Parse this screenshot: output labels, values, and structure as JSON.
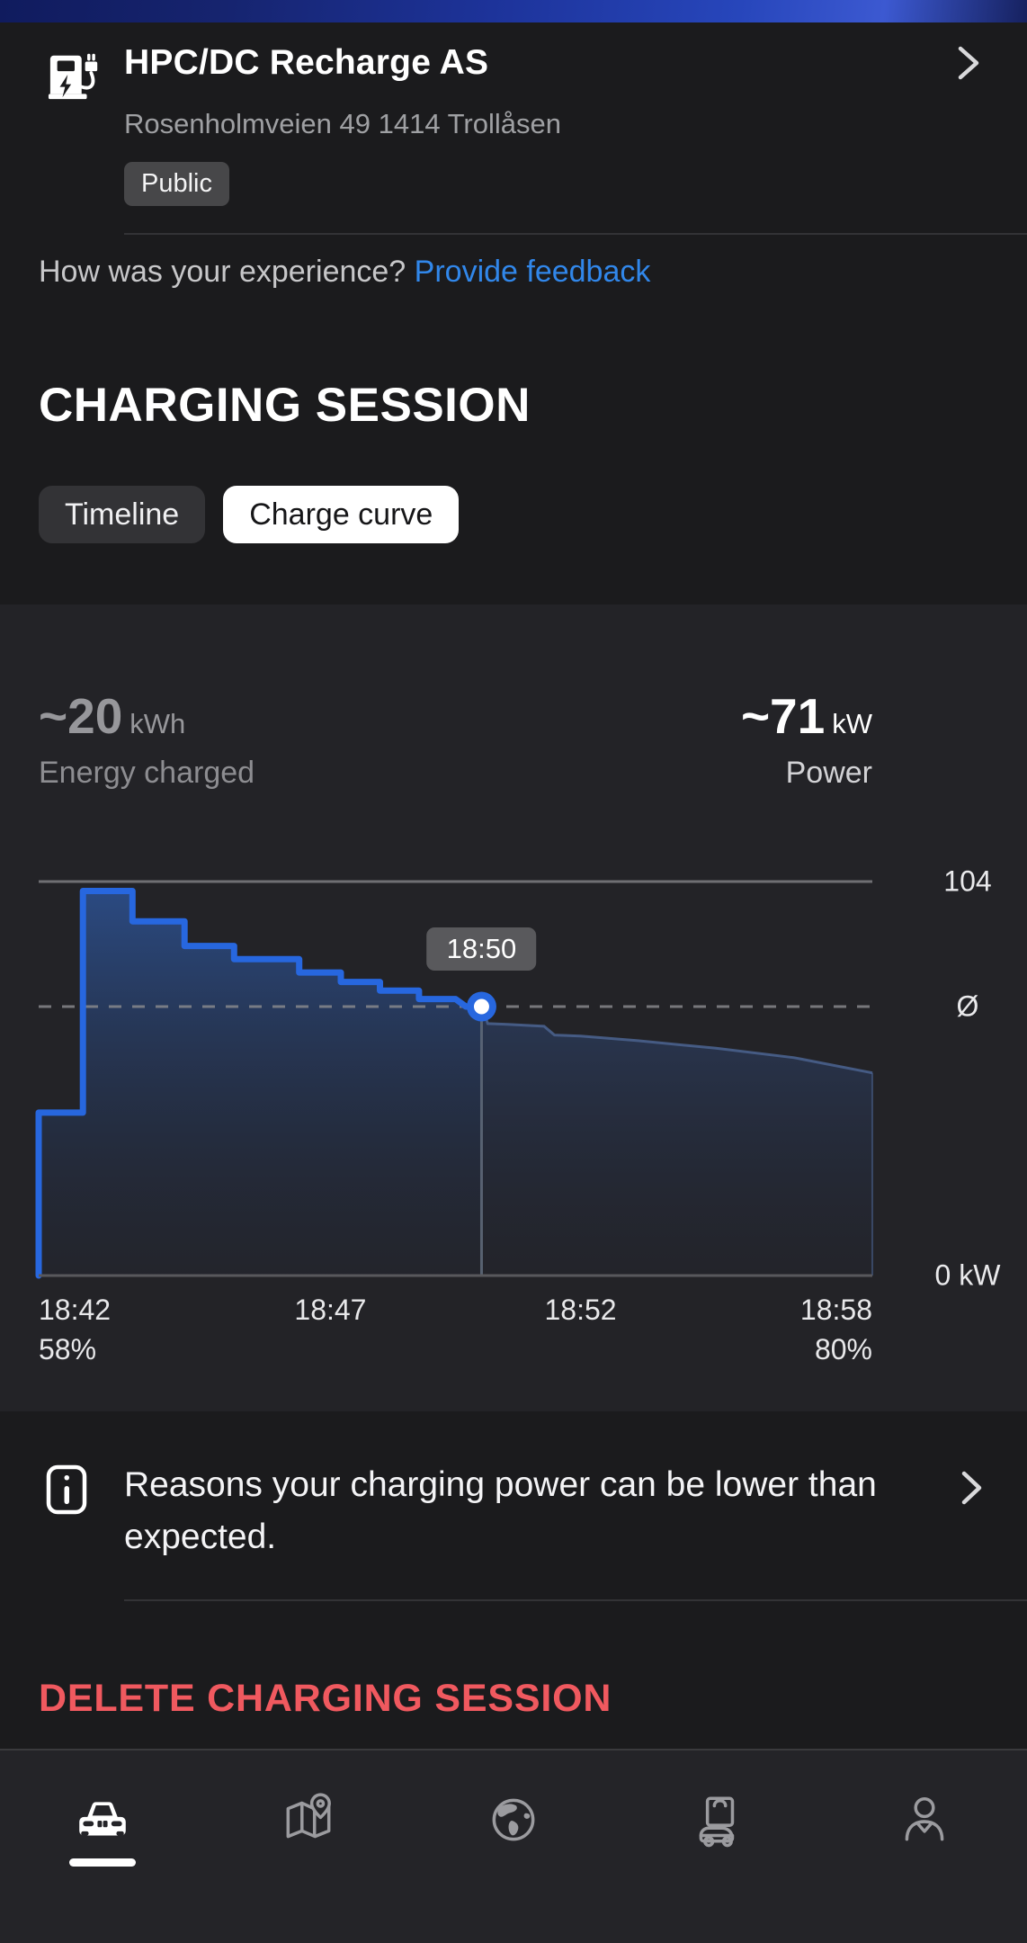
{
  "colors": {
    "accent_line": "#2767df",
    "link_blue": "#3187ea",
    "delete_red": "#f0595f",
    "tooltip_bg": "#59595c",
    "grid_top": "#7d7d81",
    "grid_base": "#58585c",
    "avg_dash": "#8d8d90",
    "cursor_line": "#5d6878",
    "dim_edge": "#49608c"
  },
  "header": {
    "title": "HPC/DC Recharge AS",
    "address": "Rosenholmveien 49 1414 Trollåsen",
    "badge": "Public"
  },
  "feedback": {
    "question": "How was your experience?",
    "link_label": "Provide feedback"
  },
  "session": {
    "heading": "CHARGING SESSION",
    "tabs": [
      {
        "label": "Timeline",
        "active": false
      },
      {
        "label": "Charge curve",
        "active": true
      }
    ]
  },
  "stats": {
    "energy": {
      "value": "~20",
      "unit": "kWh",
      "label": "Energy charged"
    },
    "power": {
      "value": "~71",
      "unit": "kW",
      "label": "Power"
    }
  },
  "chart_data": {
    "type": "area",
    "title": "Charge curve",
    "unit": "kW",
    "ylim": [
      0,
      104
    ],
    "x_span_minutes": 16,
    "grid": "top-and-baseline",
    "legend_position": "none",
    "y_ticks": [
      {
        "label": "104",
        "kW": 104
      },
      {
        "label": "Ø",
        "kW": 71
      },
      {
        "label": "0 kW",
        "kW": 0
      }
    ],
    "x_ticks": [
      {
        "label": "18:42",
        "t": 0,
        "align": "left"
      },
      {
        "label": "18:47",
        "t": 5.6,
        "align": "center"
      },
      {
        "label": "18:52",
        "t": 10.4,
        "align": "center"
      },
      {
        "label": "18:58",
        "t": 16,
        "align": "right"
      }
    ],
    "soc_ticks": [
      {
        "label": "58%",
        "t": 0,
        "align": "left"
      },
      {
        "label": "80%",
        "t": 16,
        "align": "right"
      }
    ],
    "average_kw": 71,
    "max_kw": 104,
    "cursor": {
      "t": 8.5,
      "label": "18:50",
      "kW": 71
    },
    "series_before_cursor": [
      [
        0,
        0
      ],
      [
        0,
        43
      ],
      [
        0.85,
        43
      ],
      [
        0.85,
        101.5
      ],
      [
        1.8,
        101.5
      ],
      [
        1.8,
        93.5
      ],
      [
        2.8,
        93.5
      ],
      [
        2.8,
        87
      ],
      [
        3.75,
        87
      ],
      [
        3.75,
        83.5
      ],
      [
        5,
        83.5
      ],
      [
        5,
        80
      ],
      [
        5.8,
        80
      ],
      [
        5.8,
        77.5
      ],
      [
        6.55,
        77.5
      ],
      [
        6.55,
        75.2
      ],
      [
        7.3,
        75.2
      ],
      [
        7.3,
        73
      ],
      [
        8,
        73
      ],
      [
        8.2,
        71
      ],
      [
        8.5,
        71
      ]
    ],
    "series_after_cursor": [
      [
        8.5,
        71
      ],
      [
        8.62,
        66.5
      ],
      [
        9,
        66.3
      ],
      [
        9.7,
        65.8
      ],
      [
        9.9,
        63.5
      ],
      [
        10.4,
        63.2
      ],
      [
        11.5,
        62
      ],
      [
        13,
        60
      ],
      [
        14.5,
        57.5
      ],
      [
        16,
        53.5
      ]
    ]
  },
  "reasons": {
    "text": "Reasons your charging power can be lower than expected."
  },
  "delete_button": {
    "label": "DELETE CHARGING SESSION"
  },
  "nav": {
    "active_index": 0,
    "items": [
      {
        "name": "vehicle"
      },
      {
        "name": "map"
      },
      {
        "name": "world"
      },
      {
        "name": "shop"
      },
      {
        "name": "profile"
      }
    ]
  }
}
